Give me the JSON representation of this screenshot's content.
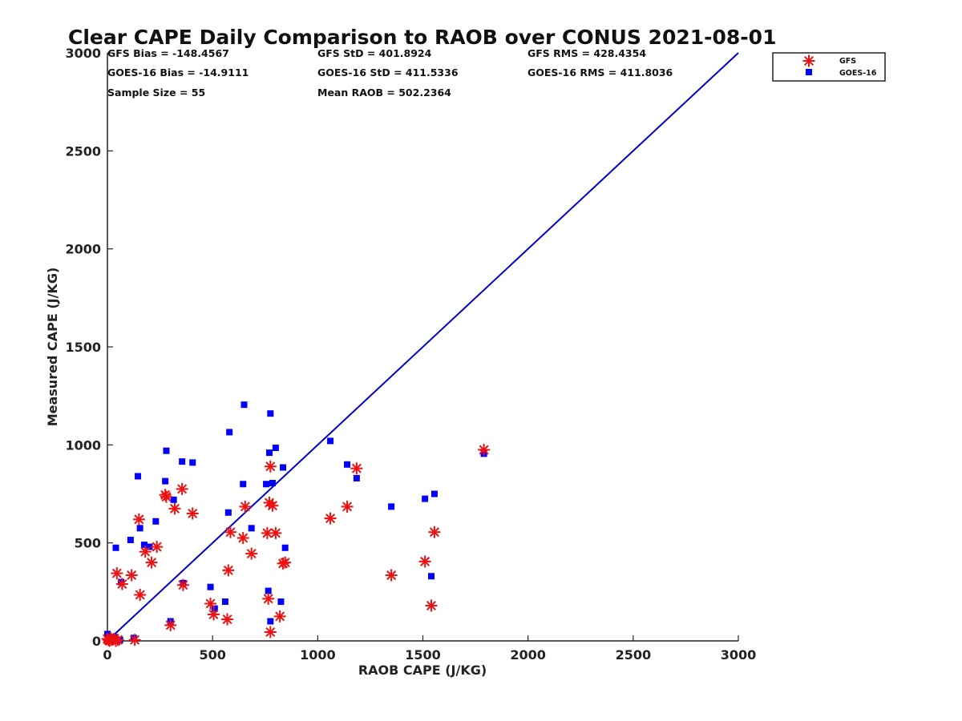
{
  "chart_data": {
    "type": "scatter",
    "title": "Clear CAPE Daily Comparison to RAOB over CONUS 2021-08-01",
    "xlabel": "RAOB CAPE (J/KG)",
    "ylabel": "Measured CAPE (J/KG)",
    "xlim": [
      0,
      3000
    ],
    "ylim": [
      0,
      3000
    ],
    "xticks": [
      "0",
      "500",
      "1000",
      "1500",
      "2000",
      "2500",
      "3000"
    ],
    "yticks": [
      "0",
      "500",
      "1000",
      "1500",
      "2000",
      "2500",
      "3000"
    ],
    "grid": false,
    "legend_position": "top-right",
    "stats": [
      [
        "GFS Bias = -148.4567",
        "GFS StD = 401.8924",
        "GFS RMS = 428.4354"
      ],
      [
        "GOES-16 Bias = -14.9111",
        "GOES-16 StD = 411.5336",
        "GOES-16 RMS = 411.8036"
      ],
      [
        "Sample Size = 55",
        "Mean RAOB = 502.2364",
        ""
      ]
    ],
    "reference_line": {
      "x": [
        0,
        3000
      ],
      "y": [
        0,
        3000
      ],
      "color": "#0000cc"
    },
    "series": [
      {
        "name": "GFS",
        "marker": "asterisk",
        "color": "#ee1111",
        "points": [
          [
            0,
            10
          ],
          [
            5,
            5
          ],
          [
            10,
            0
          ],
          [
            15,
            15
          ],
          [
            20,
            5
          ],
          [
            30,
            10
          ],
          [
            40,
            0
          ],
          [
            50,
            5
          ],
          [
            45,
            345
          ],
          [
            70,
            290
          ],
          [
            115,
            335
          ],
          [
            130,
            5
          ],
          [
            150,
            620
          ],
          [
            155,
            235
          ],
          [
            180,
            455
          ],
          [
            210,
            400
          ],
          [
            235,
            480
          ],
          [
            275,
            745
          ],
          [
            280,
            735
          ],
          [
            300,
            80
          ],
          [
            320,
            675
          ],
          [
            355,
            775
          ],
          [
            360,
            285
          ],
          [
            405,
            650
          ],
          [
            490,
            190
          ],
          [
            505,
            135
          ],
          [
            570,
            110
          ],
          [
            575,
            360
          ],
          [
            585,
            555
          ],
          [
            645,
            525
          ],
          [
            655,
            685
          ],
          [
            685,
            445
          ],
          [
            760,
            550
          ],
          [
            765,
            215
          ],
          [
            770,
            705
          ],
          [
            775,
            890
          ],
          [
            775,
            45
          ],
          [
            785,
            690
          ],
          [
            800,
            550
          ],
          [
            820,
            125
          ],
          [
            835,
            395
          ],
          [
            845,
            400
          ],
          [
            1060,
            625
          ],
          [
            1140,
            685
          ],
          [
            1185,
            880
          ],
          [
            1350,
            335
          ],
          [
            1510,
            405
          ],
          [
            1540,
            180
          ],
          [
            1555,
            555
          ],
          [
            1790,
            975
          ]
        ]
      },
      {
        "name": "GOES-16",
        "marker": "square",
        "color": "#0000ff",
        "points": [
          [
            0,
            35
          ],
          [
            5,
            0
          ],
          [
            10,
            15
          ],
          [
            20,
            5
          ],
          [
            30,
            20
          ],
          [
            45,
            0
          ],
          [
            60,
            5
          ],
          [
            40,
            475
          ],
          [
            65,
            300
          ],
          [
            110,
            515
          ],
          [
            125,
            15
          ],
          [
            145,
            840
          ],
          [
            155,
            575
          ],
          [
            175,
            490
          ],
          [
            200,
            480
          ],
          [
            230,
            610
          ],
          [
            275,
            815
          ],
          [
            280,
            970
          ],
          [
            300,
            100
          ],
          [
            315,
            720
          ],
          [
            355,
            915
          ],
          [
            360,
            295
          ],
          [
            405,
            910
          ],
          [
            490,
            275
          ],
          [
            510,
            165
          ],
          [
            560,
            200
          ],
          [
            575,
            655
          ],
          [
            580,
            1065
          ],
          [
            645,
            800
          ],
          [
            650,
            1205
          ],
          [
            685,
            575
          ],
          [
            755,
            800
          ],
          [
            765,
            255
          ],
          [
            770,
            960
          ],
          [
            775,
            1160
          ],
          [
            775,
            100
          ],
          [
            785,
            805
          ],
          [
            800,
            985
          ],
          [
            825,
            200
          ],
          [
            835,
            885
          ],
          [
            845,
            475
          ],
          [
            1060,
            1020
          ],
          [
            1140,
            900
          ],
          [
            1185,
            830
          ],
          [
            1350,
            685
          ],
          [
            1510,
            725
          ],
          [
            1540,
            330
          ],
          [
            1555,
            750
          ],
          [
            1790,
            955
          ]
        ]
      }
    ]
  }
}
